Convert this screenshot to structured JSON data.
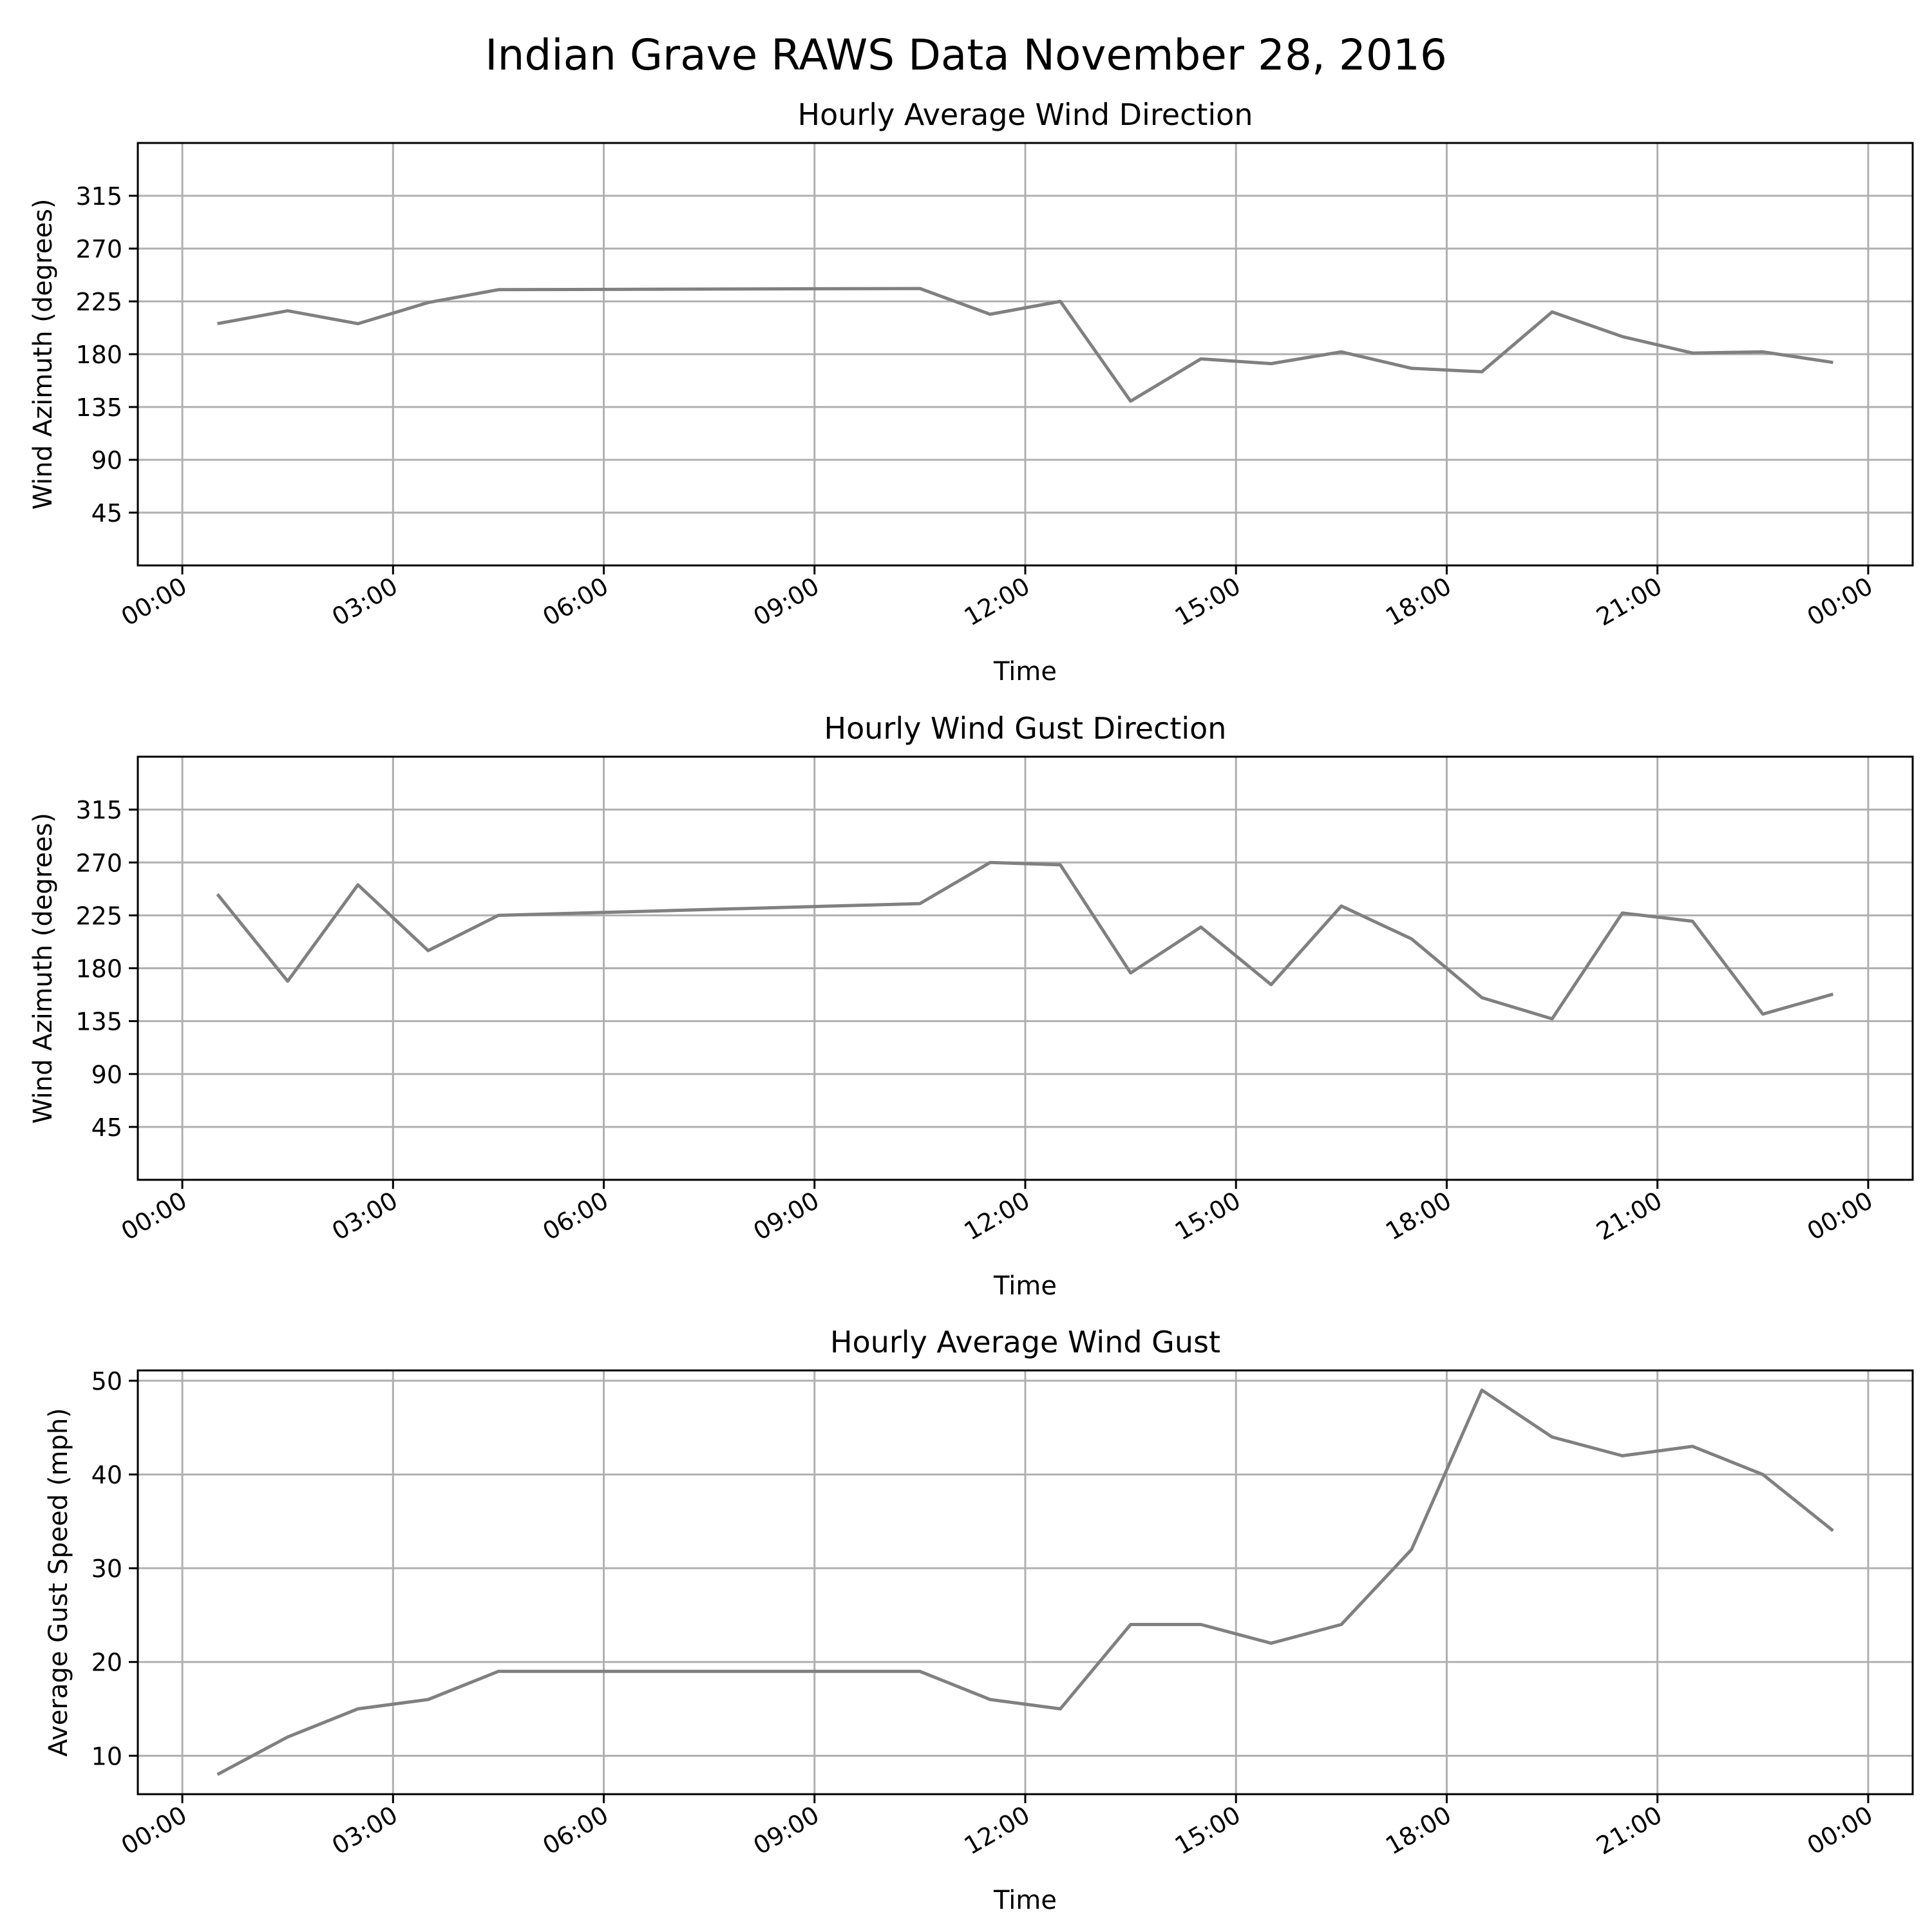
{
  "figure_title": "Indian Grave RAWS Data November 28, 2016",
  "chart_data": [
    {
      "type": "line",
      "title": "Hourly Average Wind Direction",
      "xlabel": "Time",
      "ylabel": "Wind Azimuth (degrees)",
      "x": [
        "00:30",
        "01:30",
        "02:30",
        "03:30",
        "04:30",
        "10:30",
        "11:30",
        "12:30",
        "13:30",
        "14:30",
        "15:30",
        "16:30",
        "17:30",
        "18:30",
        "19:30",
        "20:30",
        "21:30",
        "22:30",
        "23:30"
      ],
      "series": [
        {
          "values": [
            206,
            217,
            206,
            224,
            235,
            236,
            214,
            225,
            140,
            176,
            172,
            182,
            168,
            165,
            216,
            195,
            181,
            182,
            173
          ]
        }
      ],
      "ylim": [
        0,
        360
      ],
      "yticks": [
        "45",
        "90",
        "135",
        "180",
        "225",
        "270",
        "315"
      ],
      "xlim": [
        "-00:38",
        "24:38"
      ],
      "xticks": [
        "00:00",
        "03:00",
        "06:00",
        "09:00",
        "12:00",
        "15:00",
        "18:00",
        "21:00",
        "00:00"
      ],
      "grid": true
    },
    {
      "type": "line",
      "title": "Hourly Wind Gust Direction",
      "xlabel": "Time",
      "ylabel": "Wind Azimuth (degrees)",
      "x": [
        "00:30",
        "01:30",
        "02:30",
        "03:30",
        "04:30",
        "10:30",
        "11:30",
        "12:30",
        "13:30",
        "14:30",
        "15:30",
        "16:30",
        "17:30",
        "18:30",
        "19:30",
        "20:30",
        "21:30",
        "22:30",
        "23:30"
      ],
      "series": [
        {
          "values": [
            243,
            169,
            251,
            195,
            225,
            235,
            270,
            268,
            176,
            215,
            166,
            233,
            205,
            155,
            137,
            227,
            220,
            141,
            158
          ]
        }
      ],
      "ylim": [
        0,
        360
      ],
      "yticks": [
        "45",
        "90",
        "135",
        "180",
        "225",
        "270",
        "315"
      ],
      "xlim": [
        "-00:38",
        "24:38"
      ],
      "xticks": [
        "00:00",
        "03:00",
        "06:00",
        "09:00",
        "12:00",
        "15:00",
        "18:00",
        "21:00",
        "00:00"
      ],
      "grid": true
    },
    {
      "type": "line",
      "title": "Hourly Average Wind Gust",
      "xlabel": "Time",
      "ylabel": "Average Gust Speed (mph)",
      "x": [
        "00:30",
        "01:30",
        "02:30",
        "03:30",
        "04:30",
        "10:30",
        "11:30",
        "12:30",
        "13:30",
        "14:30",
        "15:30",
        "16:30",
        "17:30",
        "18:30",
        "19:30",
        "20:30",
        "21:30",
        "22:30",
        "23:30"
      ],
      "series": [
        {
          "values": [
            8,
            12,
            15,
            16,
            19,
            19,
            16,
            15,
            24,
            24,
            22,
            24,
            32,
            49,
            44,
            42,
            43,
            40,
            34
          ]
        }
      ],
      "ylim": [
        5.9,
        51.1
      ],
      "yticks": [
        "10",
        "20",
        "30",
        "40",
        "50"
      ],
      "xlim": [
        "-00:38",
        "24:38"
      ],
      "xticks": [
        "00:00",
        "03:00",
        "06:00",
        "09:00",
        "12:00",
        "15:00",
        "18:00",
        "21:00",
        "00:00"
      ],
      "grid": true
    }
  ]
}
